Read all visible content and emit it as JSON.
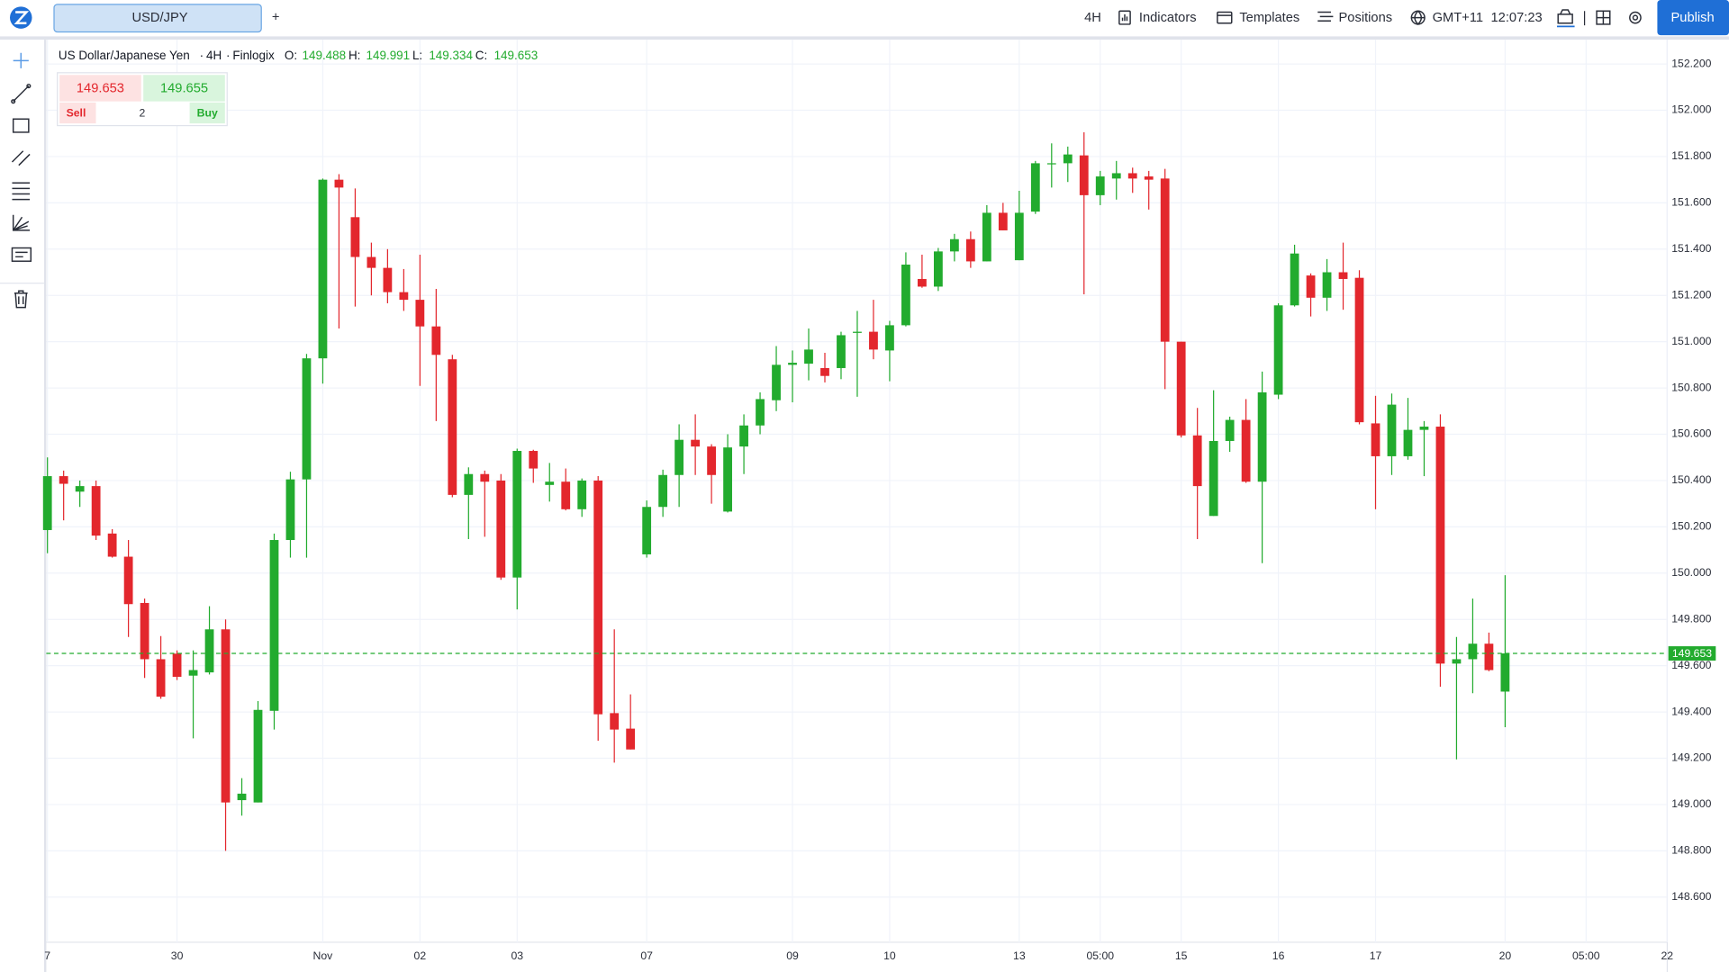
{
  "toolbar": {
    "symbol": "USD/JPY",
    "add": "+",
    "interval": "4H",
    "indicators": "Indicators",
    "templates": "Templates",
    "positions": "Positions",
    "timezone": "GMT+11",
    "clock": "12:07:23",
    "publish": "Publish"
  },
  "legend": {
    "name": "US Dollar/Japanese Yen",
    "separator": "·",
    "source": "Finlogix",
    "open_label": "O:",
    "high_label": "H:",
    "low_label": "L:",
    "close_label": "C:"
  },
  "trade": {
    "sell": "Sell",
    "buy": "Buy",
    "buy_price": 149.655,
    "quantity": 2
  },
  "chart_data": {
    "type": "candlestick",
    "up_color": "#22ab2e",
    "down_color": "#e3272d",
    "open": [
      150.186,
      150.419,
      150.352,
      150.376,
      150.171,
      150.071,
      149.871,
      149.628,
      149.652,
      149.557,
      149.571,
      149.757,
      149.019,
      149.009,
      149.405,
      150.143,
      150.405,
      150.928,
      151.7,
      151.538,
      151.366,
      151.319,
      151.214,
      151.181,
      151.066,
      150.924,
      150.338,
      150.428,
      150.4,
      149.981,
      150.528,
      150.381,
      150.395,
      150.276,
      150.4,
      149.395,
      149.328,
      150.081,
      150.286,
      150.424,
      150.576,
      150.547,
      150.266,
      150.547,
      150.638,
      150.747,
      150.9,
      150.905,
      150.886,
      150.886,
      151.038,
      151.043,
      150.962,
      151.071,
      151.271,
      151.238,
      151.39,
      151.443,
      151.347,
      151.557,
      151.352,
      151.562,
      151.767,
      151.771,
      151.805,
      151.633,
      151.705,
      151.728,
      151.714,
      151.705,
      151.0,
      150.595,
      150.247,
      150.571,
      150.662,
      150.395,
      150.771,
      151.157,
      151.286,
      151.19,
      151.3,
      151.276,
      150.647,
      150.505,
      150.505,
      150.619,
      150.633,
      149.609,
      149.628,
      149.695,
      149.488
    ],
    "high": [
      150.5,
      150.443,
      150.4,
      150.4,
      150.19,
      150.143,
      149.89,
      149.728,
      149.666,
      149.666,
      149.857,
      149.8,
      149.114,
      149.447,
      150.171,
      150.438,
      150.947,
      151.705,
      151.724,
      151.662,
      151.428,
      151.4,
      151.314,
      151.376,
      151.228,
      150.943,
      150.457,
      150.443,
      150.428,
      150.538,
      150.533,
      150.476,
      150.452,
      150.409,
      150.419,
      149.757,
      149.476,
      150.314,
      150.447,
      150.643,
      150.686,
      150.557,
      150.6,
      150.686,
      150.781,
      150.981,
      150.962,
      151.057,
      150.952,
      151.043,
      151.133,
      151.181,
      151.09,
      151.386,
      151.376,
      151.405,
      151.466,
      151.476,
      151.59,
      151.6,
      151.652,
      151.781,
      151.857,
      151.843,
      151.905,
      151.738,
      151.781,
      151.752,
      151.738,
      151.747,
      151.0,
      150.714,
      150.79,
      150.676,
      150.752,
      150.871,
      151.166,
      151.419,
      151.295,
      151.357,
      151.428,
      151.309,
      150.766,
      150.776,
      150.757,
      150.657,
      150.686,
      149.724,
      149.89,
      149.743,
      149.991
    ],
    "low": [
      150.086,
      150.228,
      150.286,
      150.143,
      150.067,
      149.724,
      149.547,
      149.457,
      149.538,
      149.286,
      149.562,
      148.8,
      148.952,
      149.009,
      149.324,
      150.067,
      150.067,
      150.819,
      151.057,
      151.152,
      151.2,
      151.166,
      151.133,
      150.809,
      150.657,
      150.328,
      150.147,
      150.157,
      149.971,
      149.843,
      150.39,
      150.309,
      150.271,
      150.243,
      149.276,
      149.181,
      149.238,
      150.067,
      150.243,
      150.286,
      150.424,
      150.3,
      150.262,
      150.428,
      150.6,
      150.7,
      150.738,
      150.833,
      150.824,
      150.838,
      150.762,
      150.924,
      150.829,
      151.066,
      151.233,
      151.219,
      151.347,
      151.319,
      151.347,
      151.481,
      151.352,
      151.552,
      151.666,
      151.69,
      151.205,
      151.59,
      151.614,
      151.643,
      151.571,
      150.795,
      150.586,
      150.147,
      150.247,
      150.524,
      150.39,
      150.043,
      150.752,
      151.152,
      151.109,
      151.133,
      151.138,
      150.643,
      150.276,
      150.424,
      150.49,
      150.419,
      149.509,
      149.195,
      149.481,
      149.576,
      149.334
    ],
    "close": [
      150.419,
      150.386,
      150.376,
      150.162,
      150.071,
      149.866,
      149.628,
      149.466,
      149.552,
      149.581,
      149.757,
      149.009,
      149.047,
      149.409,
      150.143,
      150.405,
      150.928,
      151.7,
      151.666,
      151.366,
      151.319,
      151.214,
      151.181,
      151.066,
      150.943,
      150.338,
      150.428,
      150.395,
      149.981,
      150.528,
      150.452,
      150.395,
      150.276,
      150.4,
      149.39,
      149.324,
      149.238,
      150.286,
      150.424,
      150.576,
      150.547,
      150.424,
      150.543,
      150.638,
      150.752,
      150.9,
      150.909,
      150.966,
      150.852,
      151.028,
      151.043,
      150.966,
      151.071,
      151.333,
      151.238,
      151.39,
      151.443,
      151.347,
      151.557,
      151.481,
      151.557,
      151.771,
      151.771,
      151.809,
      151.633,
      151.714,
      151.728,
      151.705,
      151.7,
      151.0,
      150.595,
      150.376,
      150.571,
      150.662,
      150.395,
      150.781,
      151.157,
      151.381,
      151.19,
      151.3,
      151.271,
      150.652,
      150.505,
      150.728,
      150.619,
      150.633,
      149.609,
      149.628,
      149.695,
      149.581,
      149.653
    ],
    "xlim": [
      -0.07,
      100.01
    ],
    "xticks": [
      {
        "value": 0,
        "label": "7"
      },
      {
        "value": 8,
        "label": "30"
      },
      {
        "value": 17,
        "label": "Nov"
      },
      {
        "value": 23,
        "label": "02"
      },
      {
        "value": 29,
        "label": "03"
      },
      {
        "value": 37,
        "label": "07"
      },
      {
        "value": 46,
        "label": "09"
      },
      {
        "value": 52,
        "label": "10"
      },
      {
        "value": 60,
        "label": "13"
      },
      {
        "value": 65,
        "label": "05:00"
      },
      {
        "value": 70,
        "label": "15"
      },
      {
        "value": 76,
        "label": "16"
      },
      {
        "value": 82,
        "label": "17"
      },
      {
        "value": 90,
        "label": "20"
      },
      {
        "value": 95,
        "label": "05:00"
      },
      {
        "value": 100,
        "label": "22"
      }
    ],
    "ylim": [
      148.405,
      152.305
    ],
    "yticks": [
      {
        "value": 148.6,
        "label": "148.600"
      },
      {
        "value": 148.8,
        "label": "148.800"
      },
      {
        "value": 149.0,
        "label": "149.000"
      },
      {
        "value": 149.2,
        "label": "149.200"
      },
      {
        "value": 149.4,
        "label": "149.400"
      },
      {
        "value": 149.6,
        "label": "149.600"
      },
      {
        "value": 149.8,
        "label": "149.800"
      },
      {
        "value": 150.0,
        "label": "150.000"
      },
      {
        "value": 150.2,
        "label": "150.200"
      },
      {
        "value": 150.4,
        "label": "150.400"
      },
      {
        "value": 150.6,
        "label": "150.600"
      },
      {
        "value": 150.8,
        "label": "150.800"
      },
      {
        "value": 151.0,
        "label": "151.000"
      },
      {
        "value": 151.2,
        "label": "151.200"
      },
      {
        "value": 151.4,
        "label": "151.400"
      },
      {
        "value": 151.6,
        "label": "151.600"
      },
      {
        "value": 151.8,
        "label": "151.800"
      },
      {
        "value": 152.0,
        "label": "152.000"
      },
      {
        "value": 152.2,
        "label": "152.200"
      }
    ],
    "grid": true
  }
}
